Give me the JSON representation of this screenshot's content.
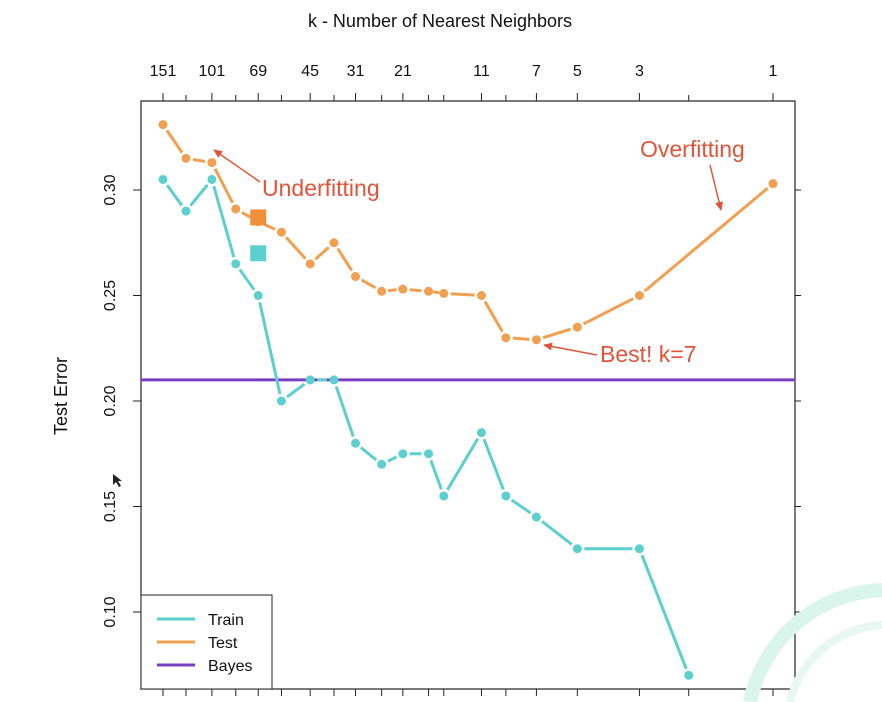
{
  "chart_data": {
    "type": "line",
    "title": "k -  Number of Nearest Neighbors",
    "xlabel": "k -  Number of Nearest Neighbors",
    "ylabel": "Test Error",
    "x_ticks": [
      "151",
      "101",
      "69",
      "45",
      "31",
      "21",
      "11",
      "7",
      "5",
      "3",
      "1"
    ],
    "y_ticks": [
      "0.10",
      "0.15",
      "0.20",
      "0.25",
      "0.30"
    ],
    "ylim": [
      0.07,
      0.34
    ],
    "grid": false,
    "legend_placement": "bottom-left",
    "series": [
      {
        "name": "Train",
        "color": "#5ccfcf",
        "points": [
          {
            "x": 151,
            "y": 0.305
          },
          {
            "x": 125,
            "y": 0.29
          },
          {
            "x": 101,
            "y": 0.305
          },
          {
            "x": 83,
            "y": 0.265
          },
          {
            "x": 69,
            "y": 0.25
          },
          {
            "x": 57,
            "y": 0.2
          },
          {
            "x": 45,
            "y": 0.21
          },
          {
            "x": 37,
            "y": 0.21
          },
          {
            "x": 31,
            "y": 0.18
          },
          {
            "x": 25,
            "y": 0.17
          },
          {
            "x": 21,
            "y": 0.175
          },
          {
            "x": 17,
            "y": 0.175
          },
          {
            "x": 15,
            "y": 0.155
          },
          {
            "x": 11,
            "y": 0.185
          },
          {
            "x": 9,
            "y": 0.155
          },
          {
            "x": 7,
            "y": 0.145
          },
          {
            "x": 5,
            "y": 0.13
          },
          {
            "x": 3,
            "y": 0.13
          },
          {
            "x": 2,
            "y": 0.07
          }
        ]
      },
      {
        "name": "Test",
        "color": "#f0a050",
        "points": [
          {
            "x": 151,
            "y": 0.331
          },
          {
            "x": 125,
            "y": 0.315
          },
          {
            "x": 101,
            "y": 0.313
          },
          {
            "x": 83,
            "y": 0.291
          },
          {
            "x": 69,
            "y": 0.285
          },
          {
            "x": 57,
            "y": 0.28
          },
          {
            "x": 45,
            "y": 0.265
          },
          {
            "x": 37,
            "y": 0.275
          },
          {
            "x": 31,
            "y": 0.259
          },
          {
            "x": 25,
            "y": 0.252
          },
          {
            "x": 21,
            "y": 0.253
          },
          {
            "x": 17,
            "y": 0.252
          },
          {
            "x": 15,
            "y": 0.251
          },
          {
            "x": 11,
            "y": 0.25
          },
          {
            "x": 9,
            "y": 0.23
          },
          {
            "x": 7,
            "y": 0.229
          },
          {
            "x": 5,
            "y": 0.235
          },
          {
            "x": 3,
            "y": 0.25
          },
          {
            "x": 1,
            "y": 0.303
          }
        ]
      },
      {
        "name": "Bayes",
        "color": "#7b3fc4",
        "y": 0.21
      }
    ],
    "square_markers": [
      {
        "series": "Test",
        "color": "#f0913a",
        "x": 69,
        "y": 0.287
      },
      {
        "series": "Train",
        "color": "#5ccfcf",
        "x": 69,
        "y": 0.27
      }
    ],
    "annotations": [
      {
        "text": "Underfitting",
        "color": "#e0553a"
      },
      {
        "text": "Overfitting",
        "color": "#e0553a"
      },
      {
        "text": "Best! k=7",
        "color": "#e0553a"
      }
    ]
  }
}
